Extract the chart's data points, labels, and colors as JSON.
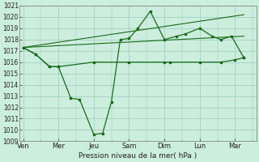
{
  "background_color": "#cceedd",
  "grid_color": "#99ccbb",
  "line_color": "#1a6b1a",
  "xlabel": "Pression niveau de la mer( hPa )",
  "ylim": [
    1009,
    1021
  ],
  "yticks": [
    1009,
    1010,
    1011,
    1012,
    1013,
    1014,
    1015,
    1016,
    1017,
    1018,
    1019,
    1020,
    1021
  ],
  "xtick_labels": [
    "Ven",
    "Mer",
    "Jeu",
    "Sam",
    "Dim",
    "Lun",
    "Mar"
  ],
  "xtick_positions": [
    0,
    2,
    4,
    6,
    8,
    10,
    12
  ],
  "xlim": [
    -0.2,
    13.2
  ],
  "series_zigzag_x": [
    0,
    0.7,
    1.5,
    2.0,
    2.7,
    3.2,
    4.0,
    4.5,
    5.0,
    5.5,
    6.0,
    6.5,
    7.2,
    8.0,
    8.7,
    9.2,
    10.0,
    10.7,
    11.2,
    11.8,
    12.5
  ],
  "series_zigzag_y": [
    1017.3,
    1016.7,
    1015.6,
    1015.6,
    1012.8,
    1012.7,
    1009.6,
    1009.7,
    1012.5,
    1018.0,
    1018.1,
    1019.0,
    1020.5,
    1018.0,
    1018.3,
    1018.5,
    1019.0,
    1018.3,
    1018.0,
    1018.3,
    1016.4
  ],
  "series_flat_x": [
    0,
    0.7,
    1.5,
    2.0,
    4.0,
    6.0,
    8.0,
    8.3,
    10.0,
    11.2,
    12.0,
    12.5
  ],
  "series_flat_y": [
    1017.3,
    1016.7,
    1015.6,
    1015.6,
    1016.0,
    1016.0,
    1016.0,
    1016.0,
    1016.0,
    1016.0,
    1016.2,
    1016.4
  ],
  "trend1_x": [
    0,
    12.5
  ],
  "trend1_y": [
    1017.3,
    1020.2
  ],
  "trend2_x": [
    0,
    12.5
  ],
  "trend2_y": [
    1017.3,
    1018.3
  ]
}
